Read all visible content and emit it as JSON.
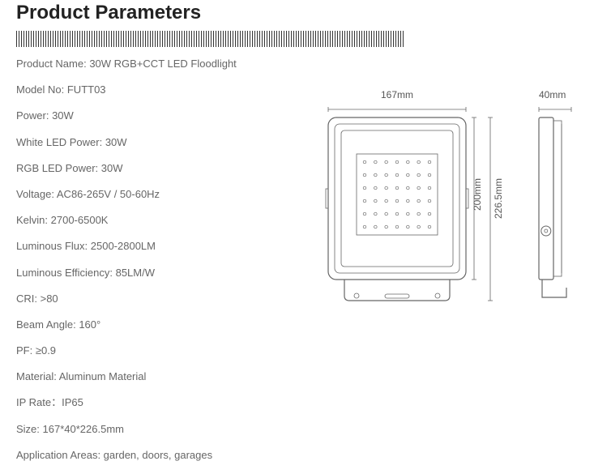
{
  "title": "Product Parameters",
  "specs": [
    {
      "label": "Product Name",
      "value": "30W RGB+CCT LED Floodlight"
    },
    {
      "label": "Model No",
      "value": "FUTT03"
    },
    {
      "label": "Power",
      "value": "30W"
    },
    {
      "label": "White LED Power",
      "value": "30W"
    },
    {
      "label": "RGB LED Power",
      "value": "30W"
    },
    {
      "label": "Voltage",
      "value": "AC86-265V / 50-60Hz"
    },
    {
      "label": "Kelvin",
      "value": "2700-6500K"
    },
    {
      "label": "Luminous Flux",
      "value": "2500-2800LM"
    },
    {
      "label": "Luminous Efficiency",
      "value": "85LM/W"
    },
    {
      "label": "CRI",
      "value": ">80"
    },
    {
      "label": "Beam Angle",
      "value": "160°"
    },
    {
      "label": "PF",
      "value": "≥0.9"
    },
    {
      "label": "Material",
      "value": "Aluminum Material"
    },
    {
      "label": "IP Rate",
      "value": "IP65",
      "sep": "："
    },
    {
      "label": "Size",
      "value": "167*40*226.5mm"
    },
    {
      "label": "Application Areas",
      "value": "garden, doors, garages"
    }
  ],
  "diagram": {
    "stroke_color": "#666666",
    "stroke_width": 1,
    "text_color": "#555555",
    "font_size": 12,
    "front": {
      "width_label": "167mm",
      "height_inner_label": "200mm",
      "height_outer_label": "226.5mm",
      "outer_w": 170,
      "outer_h": 226,
      "inner_h": 200,
      "led_grid": {
        "cols": 7,
        "rows": 6,
        "dot_r": 1.8
      }
    },
    "side": {
      "depth_label": "40mm",
      "depth_w": 40,
      "outer_h": 226
    }
  }
}
